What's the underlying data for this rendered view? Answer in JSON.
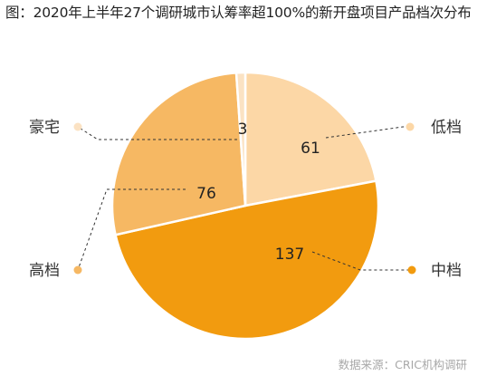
{
  "title": "图：2020年上半年27个调研城市认筹率超100%的新开盘项目产品档次分布",
  "source": "数据来源：CRIC机构调研",
  "colors": {
    "低档": "#fcd7a6",
    "中档": "#f29b0f",
    "高档": "#f6b863",
    "豪宅": "#fbe2c3"
  },
  "chart_data": {
    "type": "pie",
    "title": "图：2020年上半年27个调研城市认筹率超100%的新开盘项目产品档次分布",
    "start_angle_deg": 0,
    "direction": "clockwise",
    "legend": "callout-labels",
    "slices": [
      {
        "name": "低档",
        "value": 61
      },
      {
        "name": "中档",
        "value": 137
      },
      {
        "name": "高档",
        "value": 76
      },
      {
        "name": "豪宅",
        "value": 3
      }
    ]
  }
}
